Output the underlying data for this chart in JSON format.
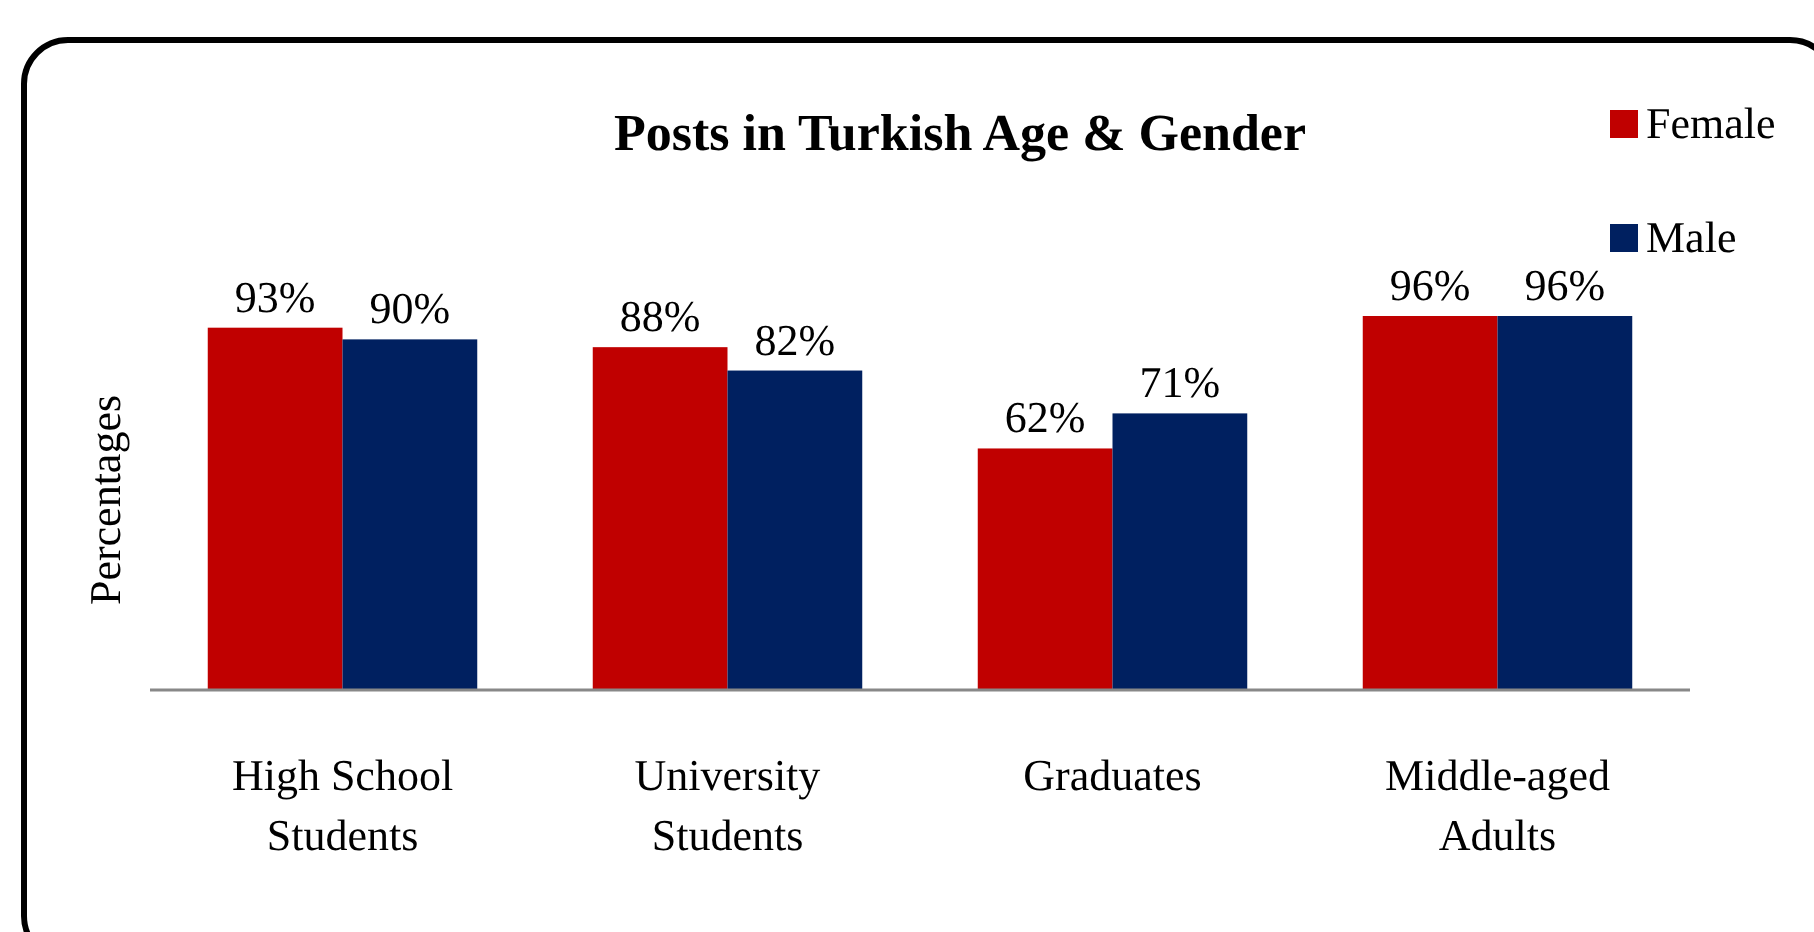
{
  "chart_data": {
    "type": "bar",
    "title": "Posts in Turkish Age & Gender",
    "ylabel": "Percentages",
    "categories": [
      "High School Students",
      "University Students",
      "Graduates",
      "Middle-aged Adults"
    ],
    "series": [
      {
        "name": "Female",
        "color": "#c00000",
        "values": [
          93,
          88,
          62,
          96
        ],
        "value_labels": [
          "93%",
          "88%",
          "62%",
          "96%"
        ]
      },
      {
        "name": "Male",
        "color": "#002060",
        "values": [
          90,
          82,
          71,
          96
        ],
        "value_labels": [
          "90%",
          "82%",
          "71%",
          "96%"
        ]
      }
    ],
    "relative": false,
    "legend": "top right"
  }
}
